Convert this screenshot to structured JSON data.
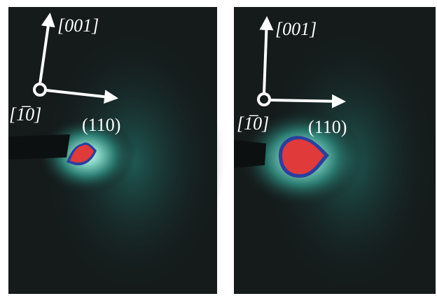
{
  "panels": [
    {
      "axis_up": "[001]",
      "axis_in": "[1̅0]",
      "reflection": "(110)"
    },
    {
      "axis_up": "[001]",
      "axis_in": "[1̅0]",
      "reflection": "(110)"
    }
  ]
}
